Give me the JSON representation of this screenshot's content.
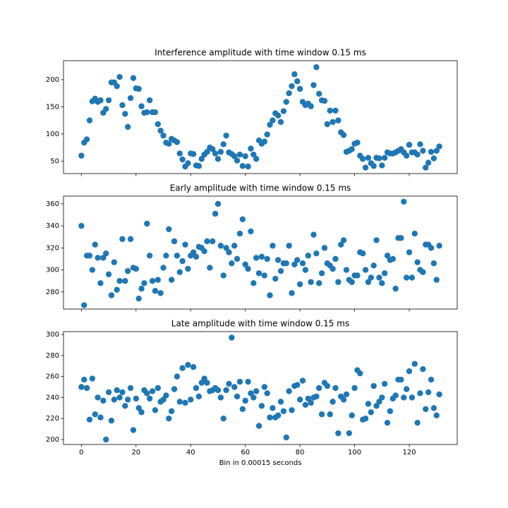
{
  "chart_data": [
    {
      "type": "scatter",
      "title": "Interference amplitude with time window 0.15 ms",
      "color": "#1f77b4",
      "x": [
        0,
        1,
        2,
        3,
        4,
        5,
        6,
        7,
        8,
        9,
        10,
        11,
        12,
        13,
        14,
        15,
        16,
        17,
        18,
        19,
        20,
        21,
        22,
        23,
        24,
        25,
        26,
        27,
        28,
        29,
        30,
        31,
        32,
        33,
        34,
        35,
        36,
        37,
        38,
        39,
        40,
        41,
        42,
        43,
        44,
        45,
        46,
        47,
        48,
        49,
        50,
        51,
        52,
        53,
        54,
        55,
        56,
        57,
        58,
        59,
        60,
        61,
        62,
        63,
        64,
        65,
        66,
        67,
        68,
        69,
        70,
        71,
        72,
        73,
        74,
        75,
        76,
        77,
        78,
        79,
        80,
        81,
        82,
        83,
        84,
        85,
        86,
        87,
        88,
        89,
        90,
        91,
        92,
        93,
        94,
        95,
        96,
        97,
        98,
        99,
        100,
        101,
        102,
        103,
        104,
        105,
        106,
        107,
        108,
        109,
        110,
        111,
        112,
        113,
        114,
        115,
        116,
        117,
        118,
        119,
        120,
        121,
        122,
        123,
        124,
        125,
        126,
        127,
        128,
        129,
        130,
        131
      ],
      "values": [
        60,
        84,
        90,
        125,
        160,
        165,
        159,
        162,
        139,
        146,
        162,
        195,
        195,
        188,
        205,
        153,
        137,
        113,
        166,
        203,
        184,
        183,
        151,
        139,
        140,
        162,
        140,
        140,
        118,
        106,
        97,
        84,
        82,
        91,
        88,
        85,
        64,
        53,
        40,
        46,
        64,
        63,
        42,
        41,
        54,
        62,
        67,
        75,
        72,
        64,
        54,
        67,
        81,
        97,
        66,
        63,
        59,
        51,
        62,
        41,
        59,
        40,
        73,
        62,
        54,
        88,
        82,
        86,
        99,
        117,
        125,
        138,
        134,
        122,
        142,
        159,
        175,
        188,
        210,
        197,
        183,
        159,
        153,
        156,
        151,
        190,
        223,
        174,
        162,
        161,
        118,
        143,
        122,
        143,
        125,
        103,
        98,
        67,
        69,
        72,
        82,
        84,
        60,
        54,
        38,
        56,
        46,
        41,
        56,
        55,
        42,
        56,
        66,
        64,
        64,
        66,
        69,
        72,
        66,
        60,
        80,
        66,
        66,
        62,
        81,
        69,
        38,
        47,
        67,
        55,
        69,
        77
      ],
      "xlim": [
        -6.55,
        137.55
      ],
      "xticks": [
        0,
        20,
        40,
        60,
        80,
        100,
        120
      ],
      "ylim": [
        27,
        235
      ],
      "yticks": [
        50,
        100,
        150,
        200
      ]
    },
    {
      "type": "scatter",
      "title": "Early amplitude with time window 0.15 ms",
      "color": "#1f77b4",
      "x": [
        0,
        1,
        2,
        3,
        4,
        5,
        6,
        7,
        8,
        9,
        10,
        11,
        12,
        13,
        14,
        15,
        16,
        17,
        18,
        19,
        20,
        21,
        22,
        23,
        24,
        25,
        26,
        27,
        28,
        29,
        30,
        31,
        32,
        33,
        34,
        35,
        36,
        37,
        38,
        39,
        40,
        41,
        42,
        43,
        44,
        45,
        46,
        47,
        48,
        49,
        50,
        51,
        52,
        53,
        54,
        55,
        56,
        57,
        58,
        59,
        60,
        61,
        62,
        63,
        64,
        65,
        66,
        67,
        68,
        69,
        70,
        71,
        72,
        73,
        74,
        75,
        76,
        77,
        78,
        79,
        80,
        81,
        82,
        83,
        84,
        85,
        86,
        87,
        88,
        89,
        90,
        91,
        92,
        93,
        94,
        95,
        96,
        97,
        98,
        99,
        100,
        101,
        102,
        103,
        104,
        105,
        106,
        107,
        108,
        109,
        110,
        111,
        112,
        113,
        114,
        115,
        116,
        117,
        118,
        119,
        120,
        121,
        122,
        123,
        124,
        125,
        126,
        127,
        128,
        129,
        130,
        131
      ],
      "values": [
        340,
        268,
        313,
        313,
        300,
        323,
        311,
        288,
        311,
        315,
        296,
        277,
        307,
        282,
        290,
        328,
        290,
        299,
        328,
        302,
        301,
        274,
        283,
        288,
        342,
        313,
        290,
        281,
        291,
        279,
        302,
        313,
        337,
        291,
        326,
        313,
        298,
        308,
        323,
        301,
        313,
        316,
        312,
        321,
        320,
        317,
        326,
        302,
        326,
        351,
        360,
        322,
        295,
        320,
        316,
        306,
        322,
        310,
        333,
        346,
        305,
        301,
        335,
        288,
        311,
        297,
        312,
        295,
        310,
        277,
        322,
        292,
        309,
        299,
        306,
        306,
        322,
        279,
        305,
        309,
        287,
        306,
        300,
        313,
        289,
        332,
        315,
        288,
        297,
        320,
        306,
        304,
        301,
        310,
        289,
        323,
        327,
        300,
        291,
        289,
        295,
        295,
        316,
        315,
        300,
        289,
        293,
        304,
        327,
        293,
        288,
        297,
        313,
        309,
        310,
        283,
        329,
        329,
        362,
        293,
        316,
        293,
        333,
        307,
        300,
        298,
        323,
        323,
        320,
        306,
        291,
        322
      ],
      "xlim": [
        -6.55,
        137.55
      ],
      "xticks": [
        0,
        20,
        40,
        60,
        80,
        100,
        120
      ],
      "ylim": [
        264.5,
        367
      ],
      "yticks": [
        280,
        300,
        320,
        340,
        360
      ]
    },
    {
      "type": "scatter",
      "title": "Late amplitude with time window 0.15 ms",
      "xlabel": "Bin in 0.00015 seconds",
      "color": "#1f77b4",
      "x": [
        0,
        1,
        2,
        3,
        4,
        5,
        6,
        7,
        8,
        9,
        10,
        11,
        12,
        13,
        14,
        15,
        16,
        17,
        18,
        19,
        20,
        21,
        22,
        23,
        24,
        25,
        26,
        27,
        28,
        29,
        30,
        31,
        32,
        33,
        34,
        35,
        36,
        37,
        38,
        39,
        40,
        41,
        42,
        43,
        44,
        45,
        46,
        47,
        48,
        49,
        50,
        51,
        52,
        53,
        54,
        55,
        56,
        57,
        58,
        59,
        60,
        61,
        62,
        63,
        64,
        65,
        66,
        67,
        68,
        69,
        70,
        71,
        72,
        73,
        74,
        75,
        76,
        77,
        78,
        79,
        80,
        81,
        82,
        83,
        84,
        85,
        86,
        87,
        88,
        89,
        90,
        91,
        92,
        93,
        94,
        95,
        96,
        97,
        98,
        99,
        100,
        101,
        102,
        103,
        104,
        105,
        106,
        107,
        108,
        109,
        110,
        111,
        112,
        113,
        114,
        115,
        116,
        117,
        118,
        119,
        120,
        121,
        122,
        123,
        124,
        125,
        126,
        127,
        128,
        129,
        130,
        131
      ],
      "values": [
        250,
        257,
        249,
        219,
        258,
        224,
        240,
        221,
        237,
        200,
        245,
        218,
        238,
        247,
        240,
        245,
        232,
        238,
        249,
        209,
        239,
        230,
        226,
        247,
        244,
        239,
        246,
        228,
        249,
        236,
        238,
        242,
        220,
        227,
        248,
        260,
        236,
        268,
        235,
        271,
        238,
        269,
        249,
        241,
        254,
        258,
        254,
        246,
        247,
        249,
        247,
        240,
        220,
        247,
        253,
        297,
        250,
        241,
        255,
        229,
        237,
        255,
        244,
        240,
        246,
        213,
        232,
        250,
        244,
        221,
        230,
        221,
        223,
        236,
        227,
        202,
        246,
        228,
        251,
        252,
        238,
        256,
        233,
        239,
        235,
        240,
        241,
        249,
        224,
        254,
        251,
        224,
        236,
        249,
        206,
        241,
        238,
        243,
        206,
        223,
        249,
        266,
        263,
        219,
        220,
        234,
        226,
        251,
        232,
        236,
        240,
        253,
        216,
        227,
        239,
        242,
        257,
        257,
        240,
        248,
        265,
        240,
        272,
        216,
        244,
        267,
        229,
        245,
        257,
        230,
        223,
        243
      ],
      "xlim": [
        -6.55,
        137.55
      ],
      "xticks": [
        0,
        20,
        40,
        60,
        80,
        100,
        120
      ],
      "ylim": [
        195.3,
        302.7
      ],
      "yticks": [
        200,
        220,
        240,
        260,
        280,
        300
      ]
    }
  ]
}
